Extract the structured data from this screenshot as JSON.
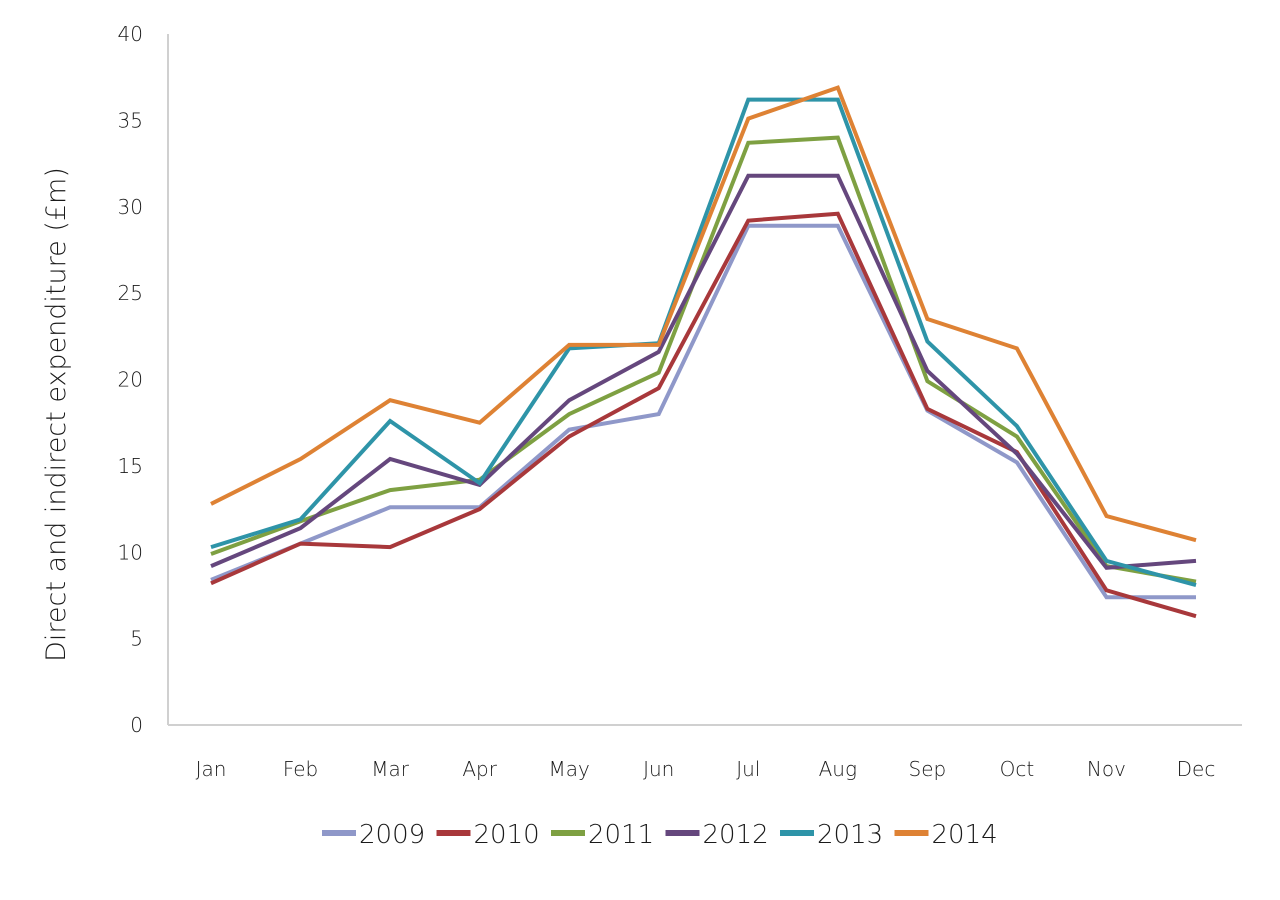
{
  "chart_data": {
    "type": "line",
    "title": "",
    "xlabel": "",
    "ylabel": "Direct and indirect expenditure (£m)",
    "categories": [
      "Jan",
      "Feb",
      "Mar",
      "Apr",
      "May",
      "Jun",
      "Jul",
      "Aug",
      "Sep",
      "Oct",
      "Nov",
      "Dec"
    ],
    "ylim": [
      0,
      40
    ],
    "yticks": [
      "0",
      "5",
      "10",
      "15",
      "20",
      "25",
      "30",
      "35",
      "40"
    ],
    "grid": false,
    "legend_position": "bottom",
    "series": [
      {
        "name": "2009",
        "color": "#8f98c9",
        "values": [
          8.4,
          10.5,
          12.6,
          12.6,
          17.1,
          18.0,
          28.9,
          28.9,
          18.2,
          15.2,
          7.4,
          7.4
        ]
      },
      {
        "name": "2010",
        "color": "#a8383b",
        "values": [
          8.2,
          10.5,
          10.3,
          12.5,
          16.7,
          19.5,
          29.2,
          29.6,
          18.3,
          15.8,
          7.8,
          6.3
        ]
      },
      {
        "name": "2011",
        "color": "#7ea042",
        "values": [
          9.9,
          11.8,
          13.6,
          14.2,
          18.0,
          20.4,
          33.7,
          34.0,
          19.9,
          16.7,
          9.2,
          8.3
        ]
      },
      {
        "name": "2012",
        "color": "#65477d",
        "values": [
          9.2,
          11.4,
          15.4,
          13.9,
          18.8,
          21.6,
          31.8,
          31.8,
          20.5,
          15.7,
          9.1,
          9.5
        ]
      },
      {
        "name": "2013",
        "color": "#2e94a8",
        "values": [
          10.3,
          11.9,
          17.6,
          14.0,
          21.8,
          22.1,
          36.2,
          36.2,
          22.2,
          17.3,
          9.5,
          8.1
        ]
      },
      {
        "name": "2014",
        "color": "#de8234",
        "values": [
          12.8,
          15.4,
          18.8,
          17.5,
          22.0,
          22.0,
          35.1,
          36.9,
          23.5,
          21.8,
          12.1,
          10.7
        ]
      }
    ]
  }
}
